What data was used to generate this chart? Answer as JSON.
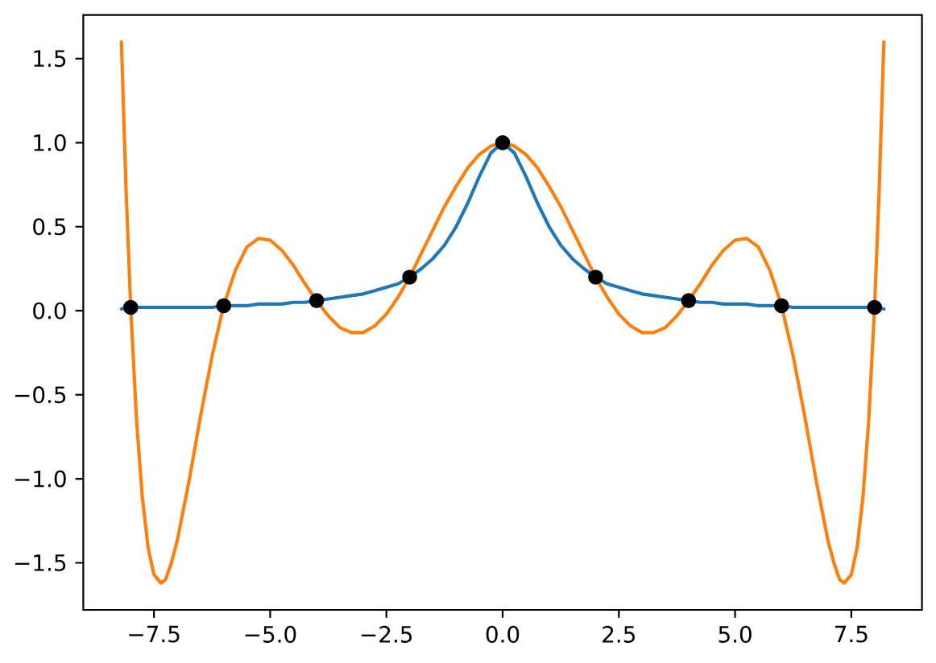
{
  "chart_data": {
    "type": "line",
    "x": [
      -8.2,
      -8.1,
      -8,
      -7.875,
      -7.75,
      -7.625,
      -7.5,
      -7.35,
      -7.25,
      -7.125,
      -7,
      -6.75,
      -6.5,
      -6.25,
      -6,
      -5.75,
      -5.5,
      -5.25,
      -5,
      -4.75,
      -4.5,
      -4.25,
      -4,
      -3.75,
      -3.5,
      -3.25,
      -3,
      -2.75,
      -2.5,
      -2.25,
      -2,
      -1.75,
      -1.5,
      -1.25,
      -1,
      -0.75,
      -0.5,
      -0.25,
      0,
      0.25,
      0.5,
      0.75,
      1,
      1.25,
      1.5,
      1.75,
      2,
      2.25,
      2.5,
      2.75,
      3,
      3.25,
      3.5,
      3.75,
      4,
      4.25,
      4.5,
      4.75,
      5,
      5.25,
      5.5,
      5.75,
      6,
      6.25,
      6.5,
      6.75,
      7,
      7.125,
      7.25,
      7.35,
      7.5,
      7.625,
      7.75,
      7.875,
      8,
      8.1,
      8.2
    ],
    "xlim": [
      -9.02,
      9.02
    ],
    "ylim": [
      -1.78,
      1.76
    ],
    "xticks": [
      {
        "value": -7.5,
        "label": "−7.5"
      },
      {
        "value": -5,
        "label": "−5.0"
      },
      {
        "value": -2.5,
        "label": "−2.5"
      },
      {
        "value": 0,
        "label": "0.0"
      },
      {
        "value": 2.5,
        "label": "2.5"
      },
      {
        "value": 5,
        "label": "5.0"
      },
      {
        "value": 7.5,
        "label": "7.5"
      }
    ],
    "yticks": [
      {
        "value": -1.5,
        "label": "−1.5"
      },
      {
        "value": -1,
        "label": "−1.0"
      },
      {
        "value": -0.5,
        "label": "−0.5"
      },
      {
        "value": 0,
        "label": "0.0"
      },
      {
        "value": 0.5,
        "label": "0.5"
      },
      {
        "value": 1,
        "label": "1.0"
      },
      {
        "value": 1.5,
        "label": "1.5"
      }
    ],
    "series": [
      {
        "color": "#1f77b4",
        "values": [
          0.01,
          0.02,
          0.02,
          0.02,
          0.02,
          0.02,
          0.02,
          0.02,
          0.02,
          0.02,
          0.02,
          0.02,
          0.02,
          0.02,
          0.03,
          0.03,
          0.03,
          0.04,
          0.04,
          0.04,
          0.05,
          0.05,
          0.06,
          0.07,
          0.08,
          0.09,
          0.1,
          0.12,
          0.14,
          0.16,
          0.2,
          0.25,
          0.31,
          0.39,
          0.5,
          0.64,
          0.8,
          0.94,
          1.0,
          0.94,
          0.8,
          0.64,
          0.5,
          0.39,
          0.31,
          0.25,
          0.2,
          0.16,
          0.14,
          0.12,
          0.1,
          0.09,
          0.08,
          0.07,
          0.06,
          0.05,
          0.05,
          0.04,
          0.04,
          0.04,
          0.03,
          0.03,
          0.03,
          0.02,
          0.02,
          0.02,
          0.02,
          0.02,
          0.02,
          0.02,
          0.02,
          0.02,
          0.02,
          0.02,
          0.02,
          0.02,
          0.01
        ]
      },
      {
        "color": "#ff7f0e",
        "values": [
          1.6,
          0.72,
          0.02,
          -0.65,
          -1.11,
          -1.41,
          -1.57,
          -1.62,
          -1.6,
          -1.5,
          -1.37,
          -1.02,
          -0.63,
          -0.27,
          0.03,
          0.24,
          0.38,
          0.43,
          0.42,
          0.36,
          0.27,
          0.16,
          0.06,
          -0.03,
          -0.1,
          -0.13,
          -0.13,
          -0.09,
          -0.02,
          0.08,
          0.2,
          0.34,
          0.48,
          0.62,
          0.74,
          0.85,
          0.93,
          0.98,
          1.0,
          0.98,
          0.93,
          0.85,
          0.74,
          0.62,
          0.48,
          0.34,
          0.2,
          0.08,
          -0.02,
          -0.09,
          -0.13,
          -0.13,
          -0.1,
          -0.03,
          0.06,
          0.16,
          0.27,
          0.36,
          0.42,
          0.43,
          0.38,
          0.24,
          0.03,
          -0.27,
          -0.63,
          -1.02,
          -1.37,
          -1.5,
          -1.6,
          -1.62,
          -1.57,
          -1.41,
          -1.11,
          -0.65,
          0.02,
          0.72,
          1.6
        ]
      },
      {
        "type": "scatter",
        "marker": "circle",
        "color": "#000000",
        "x": [
          -8,
          -6,
          -4,
          -2,
          0,
          2,
          4,
          6,
          8
        ],
        "values": [
          0.02,
          0.03,
          0.06,
          0.2,
          1,
          0.2,
          0.06,
          0.03,
          0.02
        ]
      }
    ]
  }
}
